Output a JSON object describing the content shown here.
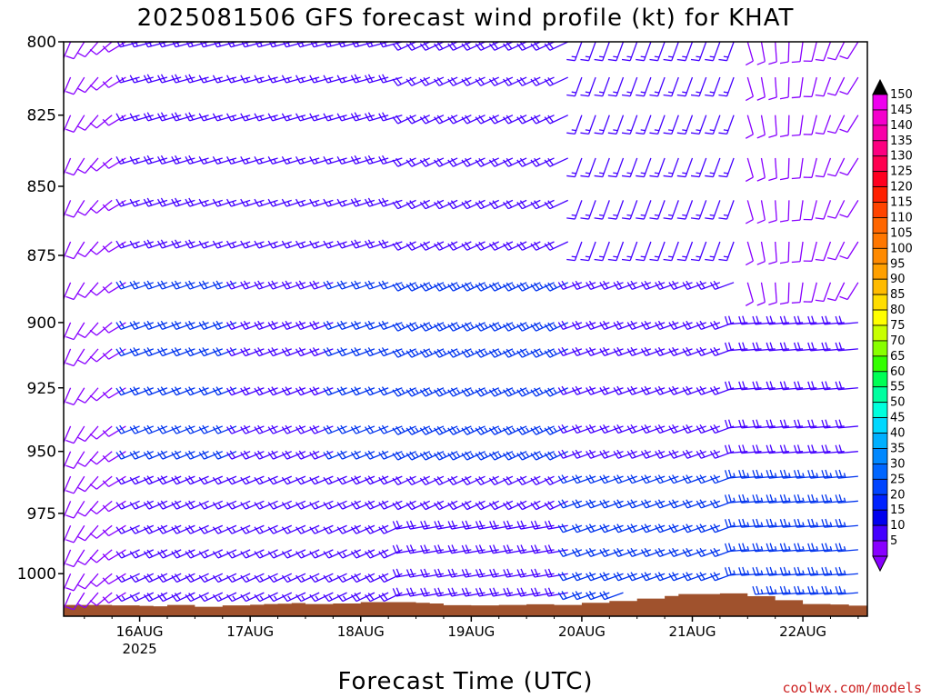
{
  "chart_data": {
    "type": "wind-barb-profile",
    "title": "2025081506 GFS forecast wind profile (kt) for KHAT",
    "xlabel": "Forecast Time (UTC)",
    "credit": "coolwx.com/models",
    "yaxis": {
      "type": "pressure (hPa), inverted, log",
      "ticks": [
        "800",
        "825",
        "850",
        "875",
        "900",
        "925",
        "950",
        "975",
        "1000"
      ],
      "ylim": [
        800,
        1018
      ]
    },
    "xaxis": {
      "range_hours_from_16AUG00": [
        -16.5,
        158
      ],
      "ticks": [
        {
          "label": "16AUG",
          "sub": "2025",
          "hour": 0
        },
        {
          "label": "17AUG",
          "sub": "",
          "hour": 24
        },
        {
          "label": "18AUG",
          "sub": "",
          "hour": 48
        },
        {
          "label": "19AUG",
          "sub": "",
          "hour": 72
        },
        {
          "label": "20AUG",
          "sub": "",
          "hour": 96
        },
        {
          "label": "21AUG",
          "sub": "",
          "hour": 120
        },
        {
          "label": "22AUG",
          "sub": "",
          "hour": 144
        }
      ]
    },
    "barb_levels_hPa": [
      1008,
      1000,
      990,
      980,
      970,
      960,
      950,
      940,
      925,
      910,
      900,
      885,
      870,
      855,
      840,
      825,
      812,
      800
    ],
    "time_step_hours": 3,
    "wind_model": "westerly to southwesterly flow at 10-25 kt, strongest at midlevels on 18-20 AUG, lighter and more southerly late in period",
    "colorbar": {
      "labels": [
        "150",
        "145",
        "140",
        "135",
        "130",
        "125",
        "120",
        "115",
        "110",
        "105",
        "100",
        "95",
        "90",
        "85",
        "80",
        "75",
        "70",
        "65",
        "60",
        "55",
        "50",
        "45",
        "40",
        "35",
        "30",
        "25",
        "20",
        "15",
        "10",
        "5"
      ],
      "colors": [
        "#ee00ee",
        "#f400cc",
        "#f800a8",
        "#fc0080",
        "#ff0050",
        "#ff0020",
        "#ff2000",
        "#ff4400",
        "#ff6600",
        "#ff7700",
        "#ff8a00",
        "#ffa000",
        "#ffbb00",
        "#ffdd00",
        "#ffff00",
        "#c8ff00",
        "#88ff00",
        "#33ff00",
        "#00ff55",
        "#00ffa0",
        "#00ffdd",
        "#00d8ff",
        "#00b0ff",
        "#0088ff",
        "#0066ff",
        "#0044ff",
        "#0022ff",
        "#0000ee",
        "#4400ff",
        "#8800ff"
      ]
    },
    "terrain": {
      "color": "#a0522d",
      "surface_pressure_hPa": [
        [
          -16.5,
          1013.2
        ],
        [
          -12,
          1013.2
        ],
        [
          -6,
          1013.4
        ],
        [
          0,
          1013.6
        ],
        [
          3,
          1013.8
        ],
        [
          6,
          1013.2
        ],
        [
          12,
          1014
        ],
        [
          18,
          1013.4
        ],
        [
          24,
          1013.1
        ],
        [
          27,
          1012.8
        ],
        [
          30,
          1012.7
        ],
        [
          33,
          1012.4
        ],
        [
          36,
          1012.8
        ],
        [
          42,
          1012.6
        ],
        [
          48,
          1012.0
        ],
        [
          54,
          1012.0
        ],
        [
          60,
          1012.3
        ],
        [
          63,
          1012.6
        ],
        [
          66,
          1013.3
        ],
        [
          72,
          1013.4
        ],
        [
          78,
          1013.2
        ],
        [
          84,
          1012.9
        ],
        [
          90,
          1013.2
        ],
        [
          96,
          1012.3
        ],
        [
          102,
          1011.5
        ],
        [
          108,
          1010.5
        ],
        [
          114,
          1009.4
        ],
        [
          117,
          1008.6
        ],
        [
          120,
          1008.6
        ],
        [
          126,
          1008.3
        ],
        [
          132,
          1009.5
        ],
        [
          138,
          1011.2
        ],
        [
          144,
          1012.8
        ],
        [
          150,
          1013.0
        ],
        [
          154,
          1013.5
        ],
        [
          158,
          1013.2
        ]
      ]
    },
    "colors": {
      "frame": "#000000",
      "text": "#000000",
      "credit": "#cc2222",
      "light_wind": "#8800ff",
      "moderate_wind": "#4400ff",
      "stronger_wind": "#0033ee"
    }
  }
}
